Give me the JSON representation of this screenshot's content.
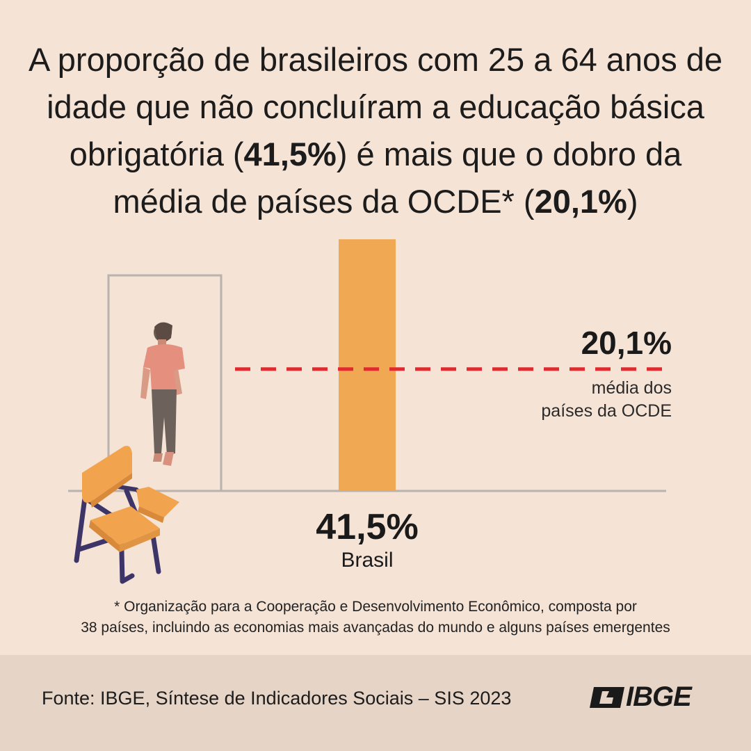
{
  "headline": {
    "part1": "A proporção de brasileiros com 25 a 64 anos de idade que não concluíram a educação básica obrigatória (",
    "brasil_value": "41,5%",
    "part2": ") é mais que o dobro da média de países da OCDE* (",
    "ocde_value": "20,1%",
    "part3": ")"
  },
  "chart_data": {
    "type": "bar",
    "categories": [
      "Brasil"
    ],
    "values": [
      41.5
    ],
    "value_labels": [
      "41,5%"
    ],
    "ylim": [
      0,
      50
    ],
    "reference_line": {
      "value": 20.1,
      "value_label": "20,1%",
      "label": "média dos países da OCDE",
      "style": "dashed",
      "color": "#e02a2f"
    },
    "bar_color": "#f0a952",
    "grid": false
  },
  "ref_label_lines": [
    "média dos",
    "países da OCDE"
  ],
  "footnote": {
    "line1": "* Organização para a Cooperação e Desenvolvimento Econômico, composta por",
    "line2": "38 países, incluindo as economias mais avançadas do mundo e alguns países emergentes"
  },
  "footer": {
    "source": "Fonte: IBGE, Síntese de Indicadores Sociais – SIS 2023",
    "logo_text": "IBGE"
  },
  "colors": {
    "background": "#f5e3d5",
    "footer_background": "#e6d4c6",
    "accent_bar": "#f0a952",
    "reference_line": "#e02a2f",
    "chair_frame": "#3d3568"
  },
  "icons": [
    "door-frame-illustration",
    "walking-person-illustration",
    "school-chair-illustration",
    "ibge-logo-icon"
  ]
}
